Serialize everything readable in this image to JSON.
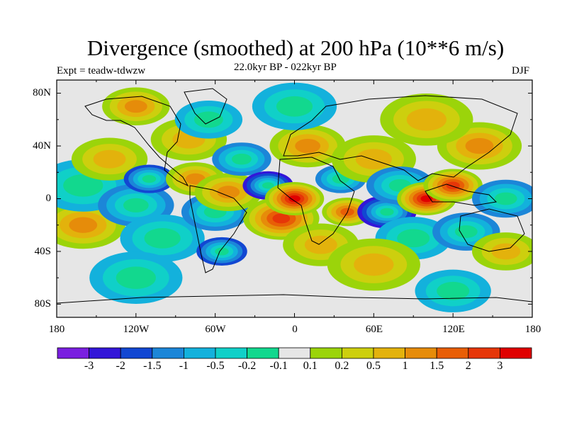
{
  "figure": {
    "title": "Divergence (smoothed) at 200 hPa (10**6 m/s)",
    "experiment": "Expt = teadw-tdwzw",
    "period": "22.0kyr BP - 022kyr BP",
    "season": "DJF"
  },
  "axes": {
    "y_ticks": [
      "80N",
      "40N",
      "0",
      "40S",
      "80S"
    ],
    "x_ticks": [
      "180",
      "120W",
      "60W",
      "0",
      "60E",
      "120E",
      "180"
    ]
  },
  "colorbar": {
    "colors": [
      "#7a1fe0",
      "#3316d8",
      "#1247d2",
      "#1c86d8",
      "#13b1dc",
      "#10d0c8",
      "#12d88e",
      "#e6e6e6",
      "#9bd40a",
      "#cdcf0e",
      "#e3b20c",
      "#e68c0a",
      "#e85e06",
      "#e63608",
      "#e00000"
    ],
    "labels": [
      "-3",
      "-2",
      "-1.5",
      "-1",
      "-0.5",
      "-0.2",
      "-0.1",
      "0.1",
      "0.2",
      "0.5",
      "1",
      "1.5",
      "2",
      "3"
    ]
  },
  "map_fields": [
    {
      "lon": -160,
      "lat": -20,
      "value": 1.0,
      "radius": 20
    },
    {
      "lon": -160,
      "lat": 10,
      "value": -0.5,
      "radius": 22
    },
    {
      "lon": -140,
      "lat": 30,
      "value": 0.5,
      "radius": 18
    },
    {
      "lon": -120,
      "lat": -5,
      "value": -1.0,
      "radius": 18
    },
    {
      "lon": -110,
      "lat": 15,
      "value": -1.5,
      "radius": 12
    },
    {
      "lon": -100,
      "lat": -30,
      "value": -0.5,
      "radius": 20
    },
    {
      "lon": -80,
      "lat": 45,
      "value": 0.5,
      "radius": 18
    },
    {
      "lon": -75,
      "lat": 15,
      "value": 1.0,
      "radius": 14
    },
    {
      "lon": -65,
      "lat": 60,
      "value": -0.5,
      "radius": 16
    },
    {
      "lon": -60,
      "lat": -10,
      "value": -1.0,
      "radius": 16
    },
    {
      "lon": -55,
      "lat": -40,
      "value": -1.5,
      "radius": 12
    },
    {
      "lon": -50,
      "lat": 5,
      "value": 1.0,
      "radius": 16
    },
    {
      "lon": -40,
      "lat": 30,
      "value": -1.0,
      "radius": 14
    },
    {
      "lon": -20,
      "lat": 10,
      "value": -2.0,
      "radius": 12
    },
    {
      "lon": -10,
      "lat": -15,
      "value": 2.0,
      "radius": 18
    },
    {
      "lon": 0,
      "lat": 0,
      "value": 3.0,
      "radius": 14
    },
    {
      "lon": 10,
      "lat": 40,
      "value": 1.0,
      "radius": 18
    },
    {
      "lon": 20,
      "lat": -35,
      "value": 0.5,
      "radius": 18
    },
    {
      "lon": 35,
      "lat": 15,
      "value": -1.0,
      "radius": 12
    },
    {
      "lon": 40,
      "lat": -10,
      "value": 1.5,
      "radius": 12
    },
    {
      "lon": 60,
      "lat": 30,
      "value": 0.5,
      "radius": 20
    },
    {
      "lon": 70,
      "lat": -10,
      "value": -2.0,
      "radius": 14
    },
    {
      "lon": 80,
      "lat": 10,
      "value": -1.0,
      "radius": 16
    },
    {
      "lon": 90,
      "lat": -30,
      "value": -0.5,
      "radius": 18
    },
    {
      "lon": 100,
      "lat": 0,
      "value": 3.0,
      "radius": 14
    },
    {
      "lon": 120,
      "lat": 10,
      "value": 2.0,
      "radius": 14
    },
    {
      "lon": 130,
      "lat": -25,
      "value": -1.0,
      "radius": 16
    },
    {
      "lon": 140,
      "lat": 40,
      "value": 1.0,
      "radius": 20
    },
    {
      "lon": 160,
      "lat": 0,
      "value": -1.0,
      "radius": 16
    },
    {
      "lon": 160,
      "lat": -40,
      "value": 0.5,
      "radius": 16
    },
    {
      "lon": 0,
      "lat": 70,
      "value": -0.5,
      "radius": 20
    },
    {
      "lon": 100,
      "lat": 60,
      "value": 0.5,
      "radius": 22
    },
    {
      "lon": -120,
      "lat": 70,
      "value": 1.0,
      "radius": 16
    },
    {
      "lon": 60,
      "lat": -50,
      "value": 0.5,
      "radius": 22
    },
    {
      "lon": -120,
      "lat": -60,
      "value": -0.5,
      "radius": 22
    },
    {
      "lon": 120,
      "lat": -70,
      "value": -0.5,
      "radius": 18
    }
  ]
}
